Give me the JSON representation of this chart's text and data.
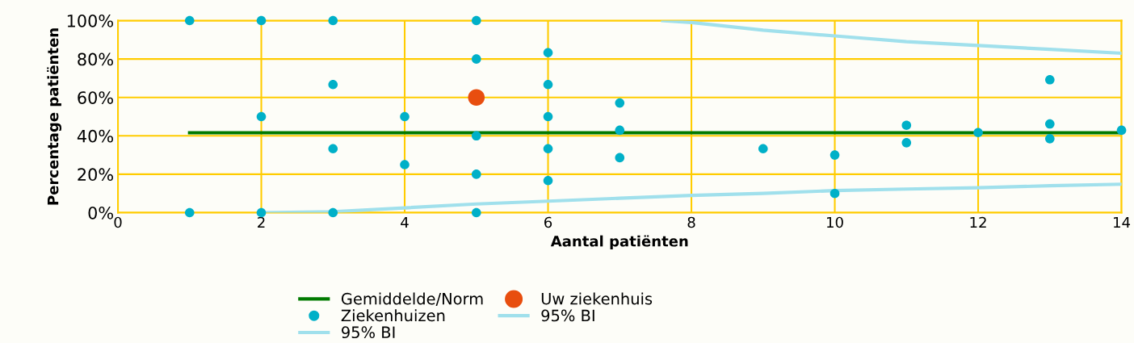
{
  "chart_data": {
    "type": "scatter",
    "xlabel": "Aantal patiënten",
    "ylabel": "Percentage patiënten",
    "xlim": [
      0,
      14
    ],
    "xticks": [
      0,
      2,
      4,
      6,
      8,
      10,
      12,
      14
    ],
    "ylim": [
      0,
      100
    ],
    "yticks": [
      {
        "value": 0,
        "label": "0%"
      },
      {
        "value": 20,
        "label": "20%"
      },
      {
        "value": 40,
        "label": "40%"
      },
      {
        "value": 60,
        "label": "60%"
      },
      {
        "value": 80,
        "label": "80%"
      },
      {
        "value": 100,
        "label": "100%"
      }
    ],
    "grid": true,
    "legend": "bottom",
    "series": [
      {
        "name": "Gemiddelde/Norm",
        "type": "line",
        "marker": "none",
        "color": "#007a00",
        "x": [
          1,
          14
        ],
        "values": [
          41.6,
          41.6
        ]
      },
      {
        "name": "Ziekenhuizen",
        "marker": "circle",
        "color": "#00b0c8",
        "x": [
          1,
          1,
          2,
          2,
          2,
          3,
          3,
          3,
          3,
          4,
          4,
          5,
          5,
          5,
          5,
          5,
          6,
          6,
          6,
          6,
          6,
          7,
          7,
          7,
          9,
          10,
          10,
          11,
          11,
          12,
          13,
          13,
          13,
          14
        ],
        "values": [
          100,
          0,
          100,
          50,
          0,
          100,
          66.7,
          33.3,
          0,
          50,
          25,
          100,
          80,
          40,
          20,
          0,
          83.3,
          66.7,
          50,
          33.3,
          16.7,
          57.1,
          42.9,
          28.6,
          33.3,
          30,
          10,
          45.5,
          36.4,
          41.7,
          69.2,
          46.2,
          38.5,
          42.9
        ]
      },
      {
        "name": "95% BI",
        "type": "line",
        "marker": "none",
        "color": "#a0e0ec",
        "x": [
          7.6,
          8,
          9,
          10,
          11,
          12,
          13,
          14
        ],
        "values": [
          100,
          99,
          95,
          92,
          89,
          87,
          85,
          83
        ]
      },
      {
        "name": "Uw ziekenhuis",
        "marker": "circle",
        "color": "#e84e0f",
        "x": [
          5
        ],
        "values": [
          60
        ]
      },
      {
        "name": "95% BI",
        "type": "line",
        "marker": "none",
        "color": "#a0e0ec",
        "x": [
          2,
          3,
          4,
          5,
          6,
          7,
          8,
          9,
          10,
          11,
          12,
          13,
          14
        ],
        "values": [
          0,
          0.5,
          2.5,
          4.5,
          6,
          7.5,
          9,
          10,
          11.5,
          12.3,
          13,
          14,
          14.8
        ]
      }
    ]
  }
}
